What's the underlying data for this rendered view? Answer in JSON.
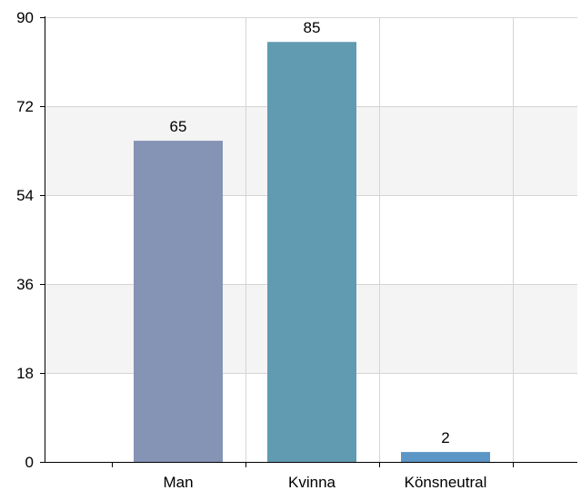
{
  "chart_data": {
    "type": "bar",
    "title": "",
    "xlabel": "",
    "ylabel": "",
    "categories": [
      "Man",
      "Kvinna",
      "Könsneutral"
    ],
    "values": [
      65,
      85,
      2
    ],
    "data_labels": [
      "65",
      "85",
      "2"
    ],
    "bar_colors": [
      "#8593b5",
      "#619bb2",
      "#5b96c6"
    ],
    "ylim": [
      0,
      90
    ],
    "y_ticks": [
      0,
      18,
      36,
      54,
      72,
      90
    ],
    "y_tick_labels": [
      "0",
      "18",
      "36",
      "54",
      "72",
      "90"
    ],
    "grid": true,
    "band_color": "#f4f4f4",
    "grid_color": "#d5d5d5",
    "axis_color": "#000000",
    "legend": "none"
  }
}
